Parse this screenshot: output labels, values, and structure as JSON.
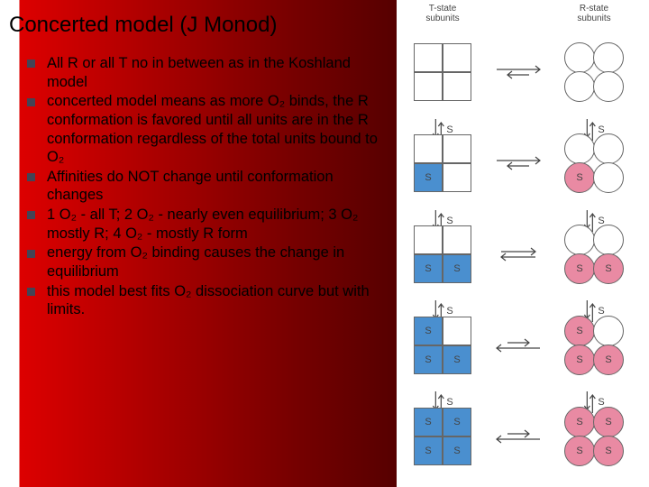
{
  "slide": {
    "title": "Concerted model (J Monod)",
    "bullets": [
      "All R or all T no in between as in the Koshland model",
      "concerted model means as more O₂ binds, the R conformation is favored until all units are in the R conformation regardless of the total units bound to O₂",
      "Affinities do NOT change until conformation changes",
      "1 O₂ - all T;  2 O₂ - nearly even equilibrium; 3 O₂ mostly R; 4 O₂ - mostly R form",
      "energy from O₂ binding causes the change in equilibrium",
      "this model best fits O₂ dissociation curve but with limits."
    ],
    "bullet_marker_color": "#444455",
    "text_font_family": "Comic Sans MS",
    "title_fontsize": 24,
    "body_fontsize": 17
  },
  "diagram": {
    "column_headers": {
      "left": "T-state\nsubunits",
      "right": "R-state\nsubunits"
    },
    "s_label": "S",
    "t_fill_color": "#4a8fcf",
    "r_fill_color": "#e98aa3",
    "border_color": "#666666",
    "arrow_color": "#444444",
    "rows": [
      {
        "t_occupied": [
          false,
          false,
          false,
          false
        ],
        "r_occupied": [
          false,
          false,
          false,
          false
        ],
        "h_arrow": "long_right_short_left"
      },
      {
        "t_occupied": [
          false,
          false,
          true,
          false
        ],
        "r_occupied": [
          false,
          false,
          true,
          false
        ],
        "h_arrow": "long_right_short_left"
      },
      {
        "t_occupied": [
          false,
          false,
          true,
          true
        ],
        "r_occupied": [
          false,
          false,
          true,
          true
        ],
        "h_arrow": "balanced"
      },
      {
        "t_occupied": [
          true,
          false,
          true,
          true
        ],
        "r_occupied": [
          true,
          false,
          true,
          true
        ],
        "h_arrow": "short_right_long_left"
      },
      {
        "t_occupied": [
          true,
          true,
          true,
          true
        ],
        "r_occupied": [
          true,
          true,
          true,
          true
        ],
        "h_arrow": "short_right_long_left"
      }
    ]
  },
  "background": {
    "gradient_stops": [
      "#ffffff",
      "#dd0000",
      "#770000",
      "#440000",
      "#220000"
    ]
  }
}
